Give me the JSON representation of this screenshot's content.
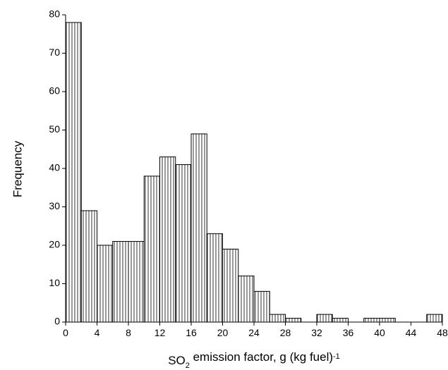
{
  "chart_data": {
    "type": "histogram",
    "ylabel": "Frequency",
    "xlabel_parts": [
      "SO",
      "2",
      " emission factor, g (kg fuel)",
      "-1"
    ],
    "bins": [
      0,
      2,
      4,
      6,
      8,
      10,
      12,
      14,
      16,
      18,
      20,
      22,
      24,
      26,
      28,
      30,
      32,
      34,
      36,
      38,
      40,
      42,
      44,
      46,
      48
    ],
    "values": [
      78,
      29,
      20,
      21,
      21,
      38,
      43,
      41,
      49,
      23,
      19,
      12,
      8,
      2,
      1,
      0,
      2,
      1,
      0,
      1,
      1,
      0,
      0,
      2
    ],
    "color": "#000000",
    "xlim": [
      0,
      48
    ],
    "ylim": [
      0,
      80
    ],
    "xticks": [
      0,
      4,
      8,
      12,
      16,
      20,
      24,
      28,
      32,
      36,
      40,
      44,
      48
    ],
    "yticks": [
      0,
      10,
      20,
      30,
      40,
      50,
      60,
      70,
      80
    ]
  }
}
